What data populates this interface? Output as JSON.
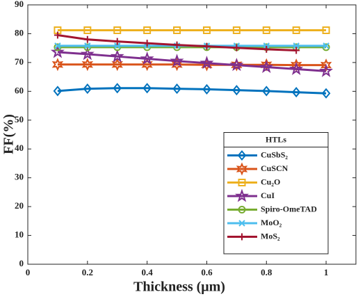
{
  "chart_data": {
    "type": "line",
    "xlabel": "Thickness (μm)",
    "ylabel": "FF(%)",
    "x": [
      0.1,
      0.2,
      0.3,
      0.4,
      0.5,
      0.6,
      0.7,
      0.8,
      0.9,
      1.0
    ],
    "xlim": [
      0,
      1.1
    ],
    "xticks": [
      0,
      0.2,
      0.4,
      0.6,
      0.8,
      1
    ],
    "ylim": [
      0,
      90
    ],
    "yticks": [
      0,
      10,
      20,
      30,
      40,
      50,
      60,
      70,
      80,
      90
    ],
    "legend_title": "HTLs",
    "legend": "lower right",
    "series": [
      {
        "name": "CuSbS₂",
        "color": "#0072BD",
        "marker": "diamond",
        "values": [
          60.1,
          60.9,
          61.1,
          61.1,
          60.9,
          60.7,
          60.4,
          60.1,
          59.7,
          59.3
        ]
      },
      {
        "name": "CuSCN",
        "color": "#D95319",
        "marker": "hexagram",
        "values": [
          69.3,
          69.3,
          69.3,
          69.3,
          69.3,
          69.2,
          69.2,
          69.2,
          69.1,
          69.1
        ]
      },
      {
        "name": "Cu₂O",
        "color": "#EDB120",
        "marker": "square",
        "values": [
          81.2,
          81.2,
          81.2,
          81.2,
          81.2,
          81.2,
          81.2,
          81.2,
          81.2,
          81.2
        ]
      },
      {
        "name": "CuI",
        "color": "#7E2F8E",
        "marker": "pentagram",
        "values": [
          73.6,
          72.9,
          72.1,
          71.3,
          70.5,
          69.8,
          69.1,
          68.4,
          67.7,
          67.0
        ]
      },
      {
        "name": "Spiro-OmeTAD",
        "color": "#77AC30",
        "marker": "circle",
        "values": [
          75.3,
          75.3,
          75.3,
          75.3,
          75.3,
          75.3,
          75.3,
          75.3,
          75.3,
          75.3
        ]
      },
      {
        "name": "MoO₂",
        "color": "#4DBEEE",
        "marker": "x",
        "values": [
          75.8,
          75.8,
          75.8,
          75.8,
          75.8,
          75.8,
          75.8,
          75.8,
          75.8,
          75.8
        ]
      },
      {
        "name": "MoS₂",
        "color": "#A2142F",
        "marker": "plus",
        "values": [
          79.5,
          78.0,
          77.3,
          76.7,
          76.1,
          75.6,
          75.1,
          74.6,
          74.2,
          null
        ]
      }
    ]
  }
}
